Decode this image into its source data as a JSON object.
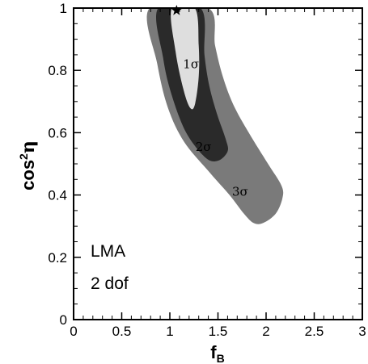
{
  "chart_data": {
    "type": "contour",
    "title": "",
    "xlabel": "f",
    "xlabel_sub": "B",
    "ylabel": "cos",
    "ylabel_sup": "2",
    "ylabel_greek": "η",
    "xlim": [
      0,
      3
    ],
    "ylim": [
      0,
      1
    ],
    "xticks": [
      0,
      0.5,
      1,
      1.5,
      2,
      2.5,
      3
    ],
    "xtick_labels": [
      "0",
      "0.5",
      "1",
      "1.5",
      "2",
      "2.5",
      "3"
    ],
    "yticks": [
      0,
      0.2,
      0.4,
      0.6,
      0.8,
      1
    ],
    "ytick_labels": [
      "0",
      "0.2",
      "0.4",
      "0.6",
      "0.8",
      "1"
    ],
    "grid": false,
    "annotations": [
      "LMA",
      "2 dof"
    ],
    "best_fit": {
      "x": 1.07,
      "y": 1.0,
      "marker": "star"
    },
    "regions": [
      {
        "name": "3σ",
        "color": "#7a7a7a",
        "label_at": [
          1.73,
          0.41
        ],
        "outline": [
          [
            0.79,
            1.0
          ],
          [
            0.87,
            0.82
          ],
          [
            0.98,
            0.68
          ],
          [
            1.15,
            0.57
          ],
          [
            1.42,
            0.47
          ],
          [
            1.62,
            0.4
          ],
          [
            1.77,
            0.34
          ],
          [
            1.87,
            0.31
          ],
          [
            1.97,
            0.31
          ],
          [
            2.1,
            0.34
          ],
          [
            2.17,
            0.39
          ],
          [
            2.16,
            0.43
          ],
          [
            2.02,
            0.5
          ],
          [
            1.82,
            0.6
          ],
          [
            1.66,
            0.69
          ],
          [
            1.55,
            0.78
          ],
          [
            1.47,
            0.88
          ],
          [
            1.4,
            1.0
          ]
        ]
      },
      {
        "name": "2σ",
        "color": "#2a2a2a",
        "label_at": [
          1.35,
          0.555
        ],
        "outline": [
          [
            0.88,
            1.0
          ],
          [
            0.93,
            0.84
          ],
          [
            1.02,
            0.72
          ],
          [
            1.17,
            0.6
          ],
          [
            1.37,
            0.52
          ],
          [
            1.5,
            0.51
          ],
          [
            1.6,
            0.54
          ],
          [
            1.58,
            0.58
          ],
          [
            1.49,
            0.66
          ],
          [
            1.41,
            0.75
          ],
          [
            1.36,
            0.85
          ],
          [
            1.32,
            1.0
          ]
        ]
      },
      {
        "name": "1σ",
        "color": "#dedede",
        "label_at": [
          1.22,
          0.82
        ],
        "outline": [
          [
            1.02,
            1.0
          ],
          [
            1.06,
            0.86
          ],
          [
            1.14,
            0.74
          ],
          [
            1.21,
            0.68
          ],
          [
            1.26,
            0.69
          ],
          [
            1.3,
            0.78
          ],
          [
            1.3,
            0.88
          ],
          [
            1.26,
            1.0
          ]
        ]
      }
    ]
  }
}
